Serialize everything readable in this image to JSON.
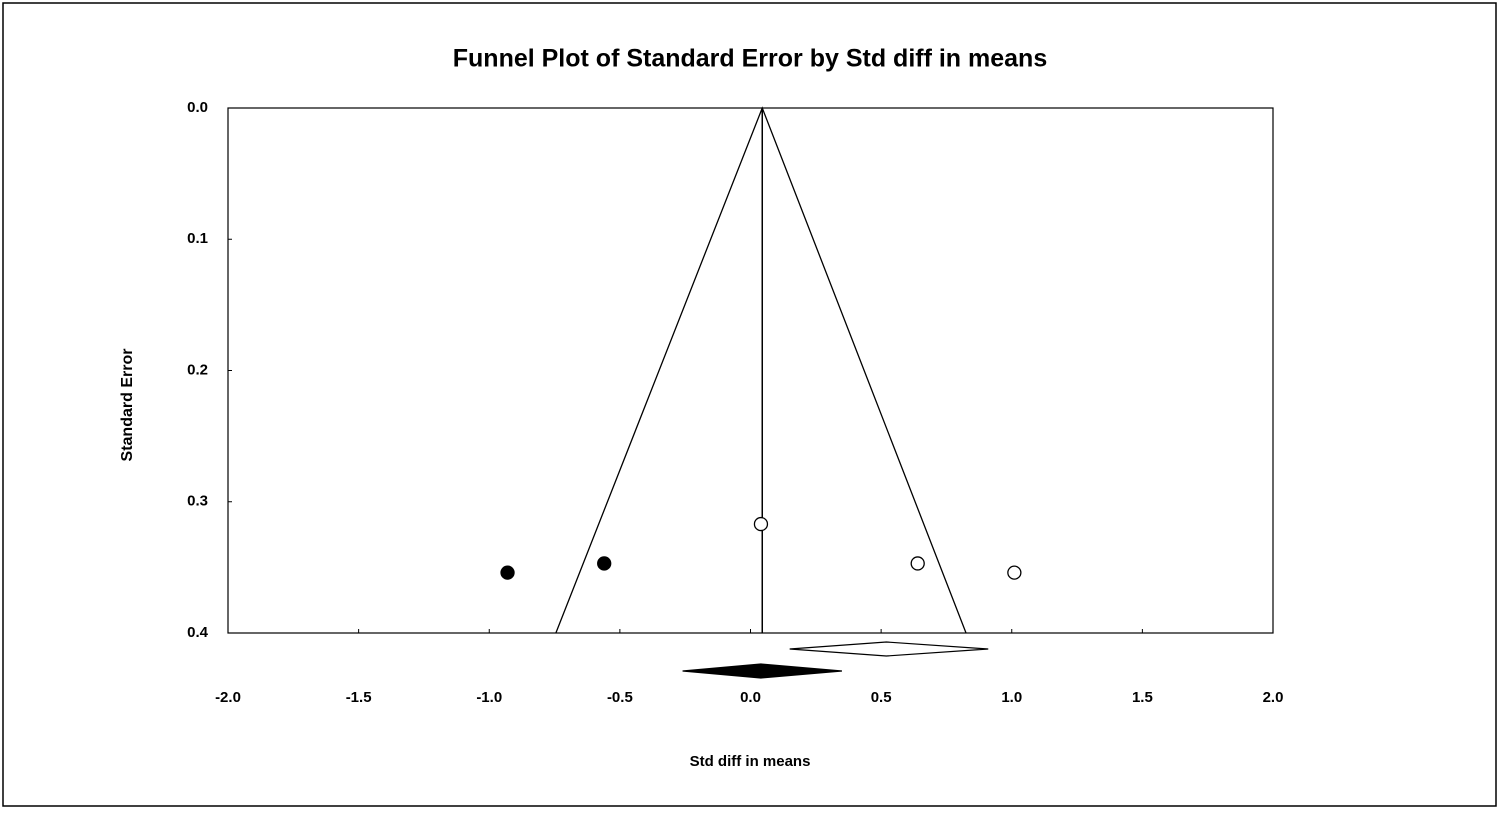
{
  "chart_data": {
    "type": "scatter",
    "title": "Funnel Plot of Standard Error by Std diff in means",
    "x_label": "Std diff in means",
    "y_label": "Standard Error",
    "xlim": [
      -2,
      2
    ],
    "ylim": [
      0,
      0.4
    ],
    "y_inverted": true,
    "xticks": [
      {
        "value": -2,
        "label": "-2.0"
      },
      -1.5,
      {
        "value": -1,
        "label": "-1.0"
      },
      -0.5,
      {
        "value": 0,
        "label": "0.0"
      },
      0.5,
      {
        "value": 1,
        "label": "1.0"
      },
      1.5,
      {
        "value": 2,
        "label": "2.0"
      }
    ],
    "yticks": [
      {
        "value": 0,
        "label": "0.0"
      },
      0.1,
      0.2,
      0.3,
      0.4
    ],
    "series": [
      {
        "filled": false,
        "color": "#000000",
        "x": [
          0.04,
          0.64,
          1.01
        ],
        "values": [
          0.317,
          0.347,
          0.354
        ]
      },
      {
        "filled": true,
        "color": "#000000",
        "x": [
          -0.93,
          -0.56
        ],
        "values": [
          0.354,
          0.347
        ]
      }
    ],
    "funnel": {
      "x": [
        -0.745,
        0.045,
        0.825
      ],
      "y": [
        0.4,
        0,
        0.4
      ]
    },
    "summary": [
      {
        "filled": false,
        "lower": 0.15,
        "center": 0.52,
        "upper": 0.91
      },
      {
        "filled": true,
        "lower": -0.26,
        "center": 0.04,
        "upper": 0.35
      }
    ]
  }
}
